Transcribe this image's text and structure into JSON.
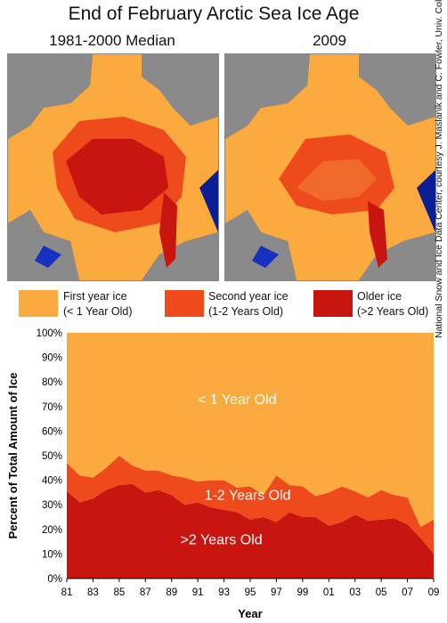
{
  "title": "End of February Arctic Sea Ice Age",
  "maps": [
    {
      "label": "1981-2000 Median"
    },
    {
      "label": "2009"
    }
  ],
  "legend": [
    {
      "label_line1": "First year ice",
      "label_line2": "(< 1 Year Old)",
      "color": "#fbaa40"
    },
    {
      "label_line1": "Second year ice",
      "label_line2": "(1-2 Years Old)",
      "color": "#ef4a1b"
    },
    {
      "label_line1": "Older ice",
      "label_line2": "(>2 Years Old)",
      "color": "#c8150f"
    }
  ],
  "credit": "National Snow and Ice Data Center, courtesy J. Maslanik and C. Fowler, Univ. Colorado",
  "chart_data": {
    "type": "area",
    "stacked": true,
    "xlabel": "Year",
    "ylabel": "Percent of Total Amount of Ice",
    "ylim": [
      0,
      100
    ],
    "x": [
      1981,
      1982,
      1983,
      1984,
      1985,
      1986,
      1987,
      1988,
      1989,
      1990,
      1991,
      1992,
      1993,
      1994,
      1995,
      1996,
      1997,
      1998,
      1999,
      2000,
      2001,
      2002,
      2003,
      2004,
      2005,
      2006,
      2007,
      2008,
      2009
    ],
    "x_tick_labels": [
      "81",
      "83",
      "85",
      "87",
      "89",
      "91",
      "93",
      "95",
      "97",
      "99",
      "01",
      "03",
      "05",
      "07",
      "09"
    ],
    "y_ticks": [
      0,
      10,
      20,
      30,
      40,
      50,
      60,
      70,
      80,
      90,
      100
    ],
    "y_tick_labels": [
      "0%",
      "10%",
      "20%",
      "30%",
      "40%",
      "50%",
      "60%",
      "70%",
      "80%",
      "90%",
      "100%"
    ],
    "series": [
      {
        "name": ">2 Years Old",
        "color": "#c8150f",
        "values": [
          35.5,
          31,
          32.5,
          36,
          38,
          38.5,
          35,
          36,
          34,
          30,
          31,
          29,
          28,
          27,
          24,
          25,
          23,
          27,
          25,
          25,
          21.5,
          23,
          26,
          23.5,
          24,
          24.5,
          22,
          16.5,
          10
        ]
      },
      {
        "name": "1-2 Years Old",
        "color": "#ef4a1b",
        "values": [
          11.5,
          11,
          8.5,
          9,
          12,
          7.5,
          9,
          8,
          8,
          11,
          8.5,
          11,
          12,
          10,
          13.5,
          9,
          19,
          11,
          12.5,
          8.5,
          13.5,
          14.5,
          9.5,
          9.5,
          12,
          9.5,
          11,
          4.5,
          14
        ]
      },
      {
        "name": "< 1 Year Old",
        "color": "#fbaa40",
        "values": [
          53,
          58,
          59,
          55,
          50,
          54,
          56,
          56,
          58,
          59,
          60.5,
          60,
          60,
          63,
          62.5,
          66,
          58,
          62,
          62.5,
          66.5,
          65,
          62.5,
          64.5,
          67,
          64,
          66,
          67,
          79,
          76
        ]
      }
    ]
  }
}
